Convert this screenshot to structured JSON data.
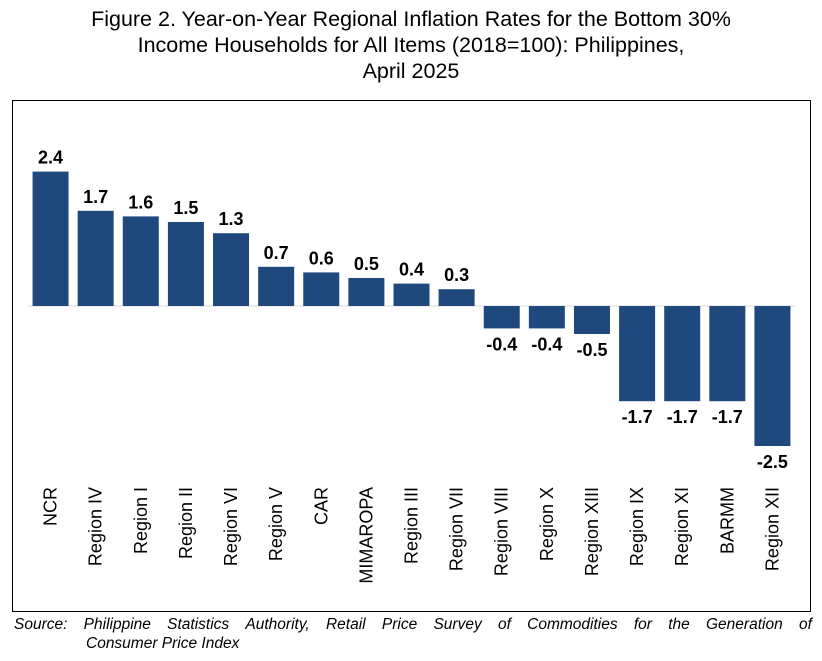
{
  "title_lines": [
    "Figure 2. Year-on-Year Regional Inflation Rates for the Bottom 30%",
    "Income Households for All Items (2018=100): Philippines,",
    "April 2025"
  ],
  "chart_data": {
    "type": "bar",
    "title": "Figure 2. Year-on-Year Regional Inflation Rates for the Bottom 30% Income Households for All Items (2018=100): Philippines, April 2025",
    "categories": [
      "NCR",
      "Region IV",
      "Region I",
      "Region II",
      "Region VI",
      "Region V",
      "CAR",
      "MIMAROPA",
      "Region III",
      "Region VII",
      "Region VIII",
      "Region X",
      "Region XIII",
      "Region IX",
      "Region XI",
      "BARMM",
      "Region XII"
    ],
    "values": [
      2.4,
      1.7,
      1.6,
      1.5,
      1.3,
      0.7,
      0.6,
      0.5,
      0.4,
      0.3,
      -0.4,
      -0.4,
      -0.5,
      -1.7,
      -1.7,
      -1.7,
      -2.5
    ],
    "data_labels": [
      "2.4",
      "1.7",
      "1.6",
      "1.5",
      "1.3",
      "0.7",
      "0.6",
      "0.5",
      "0.4",
      "0.3",
      "-0.4",
      "-0.4",
      "-0.5",
      "-1.7",
      "-1.7",
      "-1.7",
      "-2.5"
    ],
    "ylim": [
      -3.0,
      3.0
    ],
    "xlabel": "",
    "ylabel": "",
    "bar_color": "#1f497d",
    "axis_line_color": "#d9d9d9",
    "grid": false,
    "legend": false
  },
  "source": {
    "line1_words": [
      "Source:",
      "Philippine",
      "Statistics",
      "Authority,",
      "Retail",
      "Price",
      "Survey",
      "of",
      "Commodities",
      "for",
      "the",
      "Generation",
      "of"
    ],
    "line2": "Consumer Price Index"
  }
}
